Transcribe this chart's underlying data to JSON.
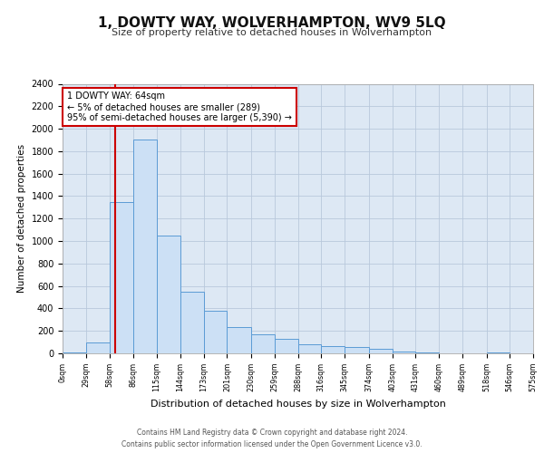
{
  "title": "1, DOWTY WAY, WOLVERHAMPTON, WV9 5LQ",
  "subtitle": "Size of property relative to detached houses in Wolverhampton",
  "xlabel": "Distribution of detached houses by size in Wolverhampton",
  "ylabel": "Number of detached properties",
  "footer_line1": "Contains HM Land Registry data © Crown copyright and database right 2024.",
  "footer_line2": "Contains public sector information licensed under the Open Government Licence v3.0.",
  "bar_color": "#cce0f5",
  "bar_edge_color": "#5b9bd5",
  "grid_color": "#b8c8dc",
  "background_color": "#dde8f4",
  "vline_x": 64,
  "vline_color": "#cc0000",
  "annotation_text": "1 DOWTY WAY: 64sqm\n← 5% of detached houses are smaller (289)\n95% of semi-detached houses are larger (5,390) →",
  "annotation_box_color": "#cc0000",
  "bin_edges": [
    0,
    29,
    58,
    86,
    115,
    144,
    173,
    201,
    230,
    259,
    288,
    316,
    345,
    374,
    403,
    431,
    460,
    489,
    518,
    546,
    575
  ],
  "bin_labels": [
    "0sqm",
    "29sqm",
    "58sqm",
    "86sqm",
    "115sqm",
    "144sqm",
    "173sqm",
    "201sqm",
    "230sqm",
    "259sqm",
    "288sqm",
    "316sqm",
    "345sqm",
    "374sqm",
    "403sqm",
    "431sqm",
    "460sqm",
    "489sqm",
    "518sqm",
    "546sqm",
    "575sqm"
  ],
  "bar_heights": [
    5,
    100,
    1350,
    1900,
    1050,
    550,
    380,
    230,
    170,
    130,
    80,
    65,
    60,
    40,
    20,
    5,
    0,
    0,
    5,
    0,
    5
  ],
  "ylim": [
    0,
    2400
  ],
  "yticks": [
    0,
    200,
    400,
    600,
    800,
    1000,
    1200,
    1400,
    1600,
    1800,
    2000,
    2200,
    2400
  ]
}
